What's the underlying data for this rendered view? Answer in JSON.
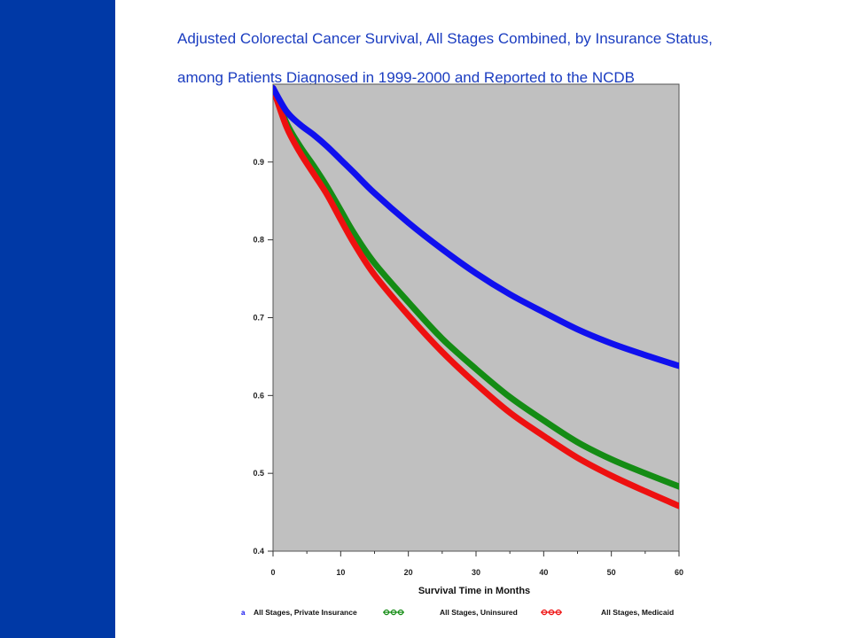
{
  "slide": {
    "band_color": "#0039a6",
    "title_line1": "Adjusted Colorectal Cancer Survival, All Stages Combined, by Insurance Status,",
    "title_line2": "among Patients Diagnosed in 1999-2000 and Reported to the NCDB",
    "title_color": "#1a3cc0"
  },
  "chart_data": {
    "type": "line",
    "title": "Adjusted Colorectal Cancer Survival, All Stages Combined, by Insurance Status, among Patients Diagnosed in 1999-2000 and Reported to the NCDB",
    "xlabel": "Survival Time in Months",
    "ylabel": "",
    "xlim": [
      0,
      60
    ],
    "ylim": [
      0.4,
      1.0
    ],
    "x_ticks": [
      0,
      10,
      20,
      30,
      40,
      50,
      60
    ],
    "y_ticks": [
      0.4,
      0.5,
      0.6,
      0.7,
      0.8,
      0.9
    ],
    "y_tick_labels": [
      "0.4",
      "0.5",
      "0.6",
      "0.7",
      "0.8",
      "0.9"
    ],
    "grid": false,
    "plot_background": "#c0c0c0",
    "legend_position": "bottom",
    "x": [
      0,
      2,
      4,
      6,
      8,
      10,
      12,
      15,
      20,
      25,
      30,
      35,
      40,
      45,
      50,
      55,
      60
    ],
    "series": [
      {
        "name": "All Stages, Private Insurance",
        "legend_marker": "a",
        "color": "#1010ee",
        "values": [
          0.995,
          0.965,
          0.948,
          0.935,
          0.92,
          0.903,
          0.886,
          0.86,
          0.822,
          0.788,
          0.757,
          0.73,
          0.707,
          0.685,
          0.667,
          0.652,
          0.638
        ]
      },
      {
        "name": "All Stages, Uninsured",
        "legend_marker": "circles",
        "color": "#148c14",
        "values": [
          0.995,
          0.95,
          0.92,
          0.895,
          0.868,
          0.838,
          0.808,
          0.77,
          0.72,
          0.673,
          0.634,
          0.598,
          0.568,
          0.54,
          0.518,
          0.5,
          0.483
        ]
      },
      {
        "name": "All Stages, Medicaid",
        "legend_marker": "circles",
        "color": "#ee1010",
        "values": [
          0.995,
          0.945,
          0.912,
          0.885,
          0.858,
          0.826,
          0.795,
          0.755,
          0.703,
          0.656,
          0.615,
          0.578,
          0.548,
          0.52,
          0.497,
          0.477,
          0.458
        ]
      }
    ]
  }
}
